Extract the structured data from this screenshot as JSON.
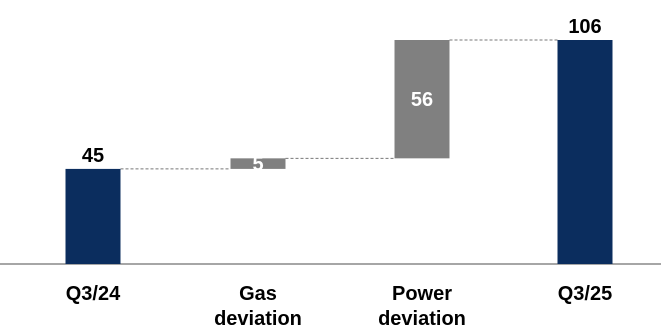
{
  "chart_data": {
    "type": "bar",
    "subtype": "waterfall",
    "title": "",
    "xlabel": "",
    "ylabel": "",
    "ylim": [
      0,
      106
    ],
    "grid": false,
    "legend": "none",
    "categories": [
      [
        "Q3/24"
      ],
      [
        "Gas",
        "deviation"
      ],
      [
        "Power",
        "deviation"
      ],
      [
        "Q3/25"
      ]
    ],
    "bars": [
      {
        "kind": "total",
        "value": 45,
        "label": "45"
      },
      {
        "kind": "delta",
        "value": 5,
        "label": "5"
      },
      {
        "kind": "delta",
        "value": 56,
        "label": "56"
      },
      {
        "kind": "total",
        "value": 106,
        "label": "106"
      }
    ],
    "colors": {
      "total": "#0b2d5e",
      "delta": "#808080",
      "connector": "#777777",
      "axis": "#888888"
    }
  }
}
